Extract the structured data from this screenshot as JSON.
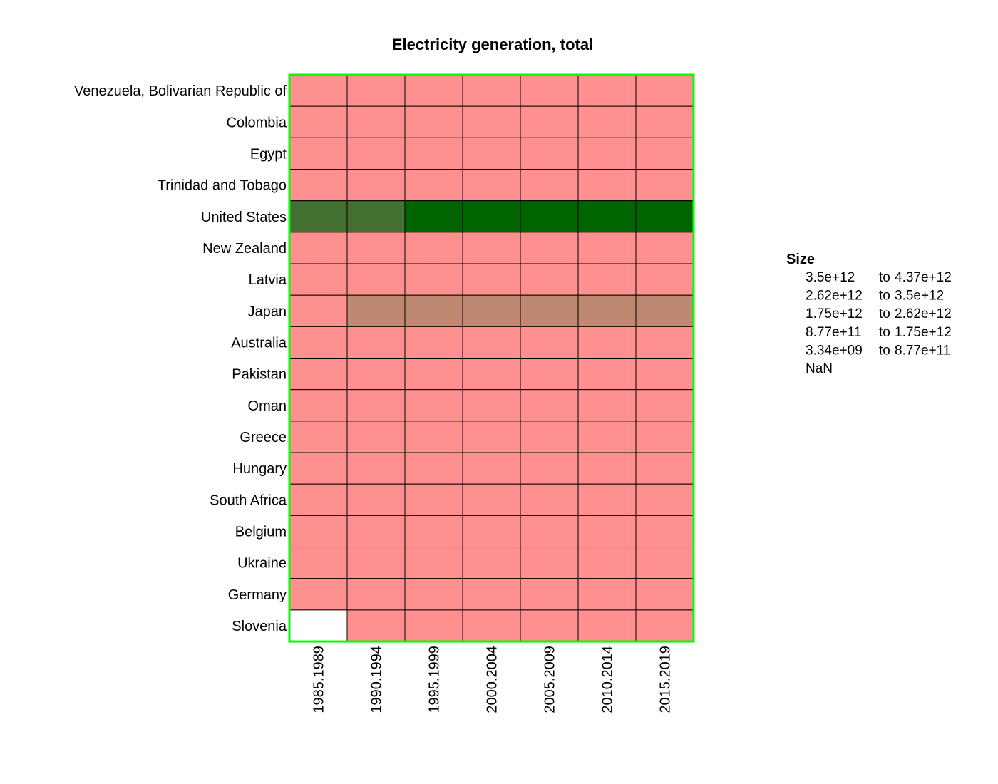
{
  "chart_data": {
    "type": "heatmap",
    "title": "Electricity generation, total",
    "columns": [
      "1985.1989",
      "1990.1994",
      "1995.1999",
      "2000.2004",
      "2005.2009",
      "2010.2014",
      "2015.2019"
    ],
    "rows": [
      "Venezuela, Bolivarian Republic of",
      "Colombia",
      "Egypt",
      "Trinidad and Tobago",
      "United States",
      "New Zealand",
      "Latvia",
      "Japan",
      "Australia",
      "Pakistan",
      "Oman",
      "Greece",
      "Hungary",
      "South Africa",
      "Belgium",
      "Ukraine",
      "Germany",
      "Slovenia"
    ],
    "bins": [
      {
        "from": "3.5e+12",
        "to": "4.37e+12",
        "color": "#006400"
      },
      {
        "from": "2.62e+12",
        "to": "3.5e+12",
        "color": "#437030"
      },
      {
        "from": "1.75e+12",
        "to": "2.62e+12",
        "color": "#807c60"
      },
      {
        "from": "8.77e+11",
        "to": "1.75e+12",
        "color": "#bf8870"
      },
      {
        "from": "3.34e+09",
        "to": "8.77e+11",
        "color": "#ff9090"
      }
    ],
    "nan_label": "NaN",
    "nan_color": "#ffffff",
    "bin_index": [
      [
        4,
        4,
        4,
        4,
        4,
        4,
        4
      ],
      [
        4,
        4,
        4,
        4,
        4,
        4,
        4
      ],
      [
        4,
        4,
        4,
        4,
        4,
        4,
        4
      ],
      [
        4,
        4,
        4,
        4,
        4,
        4,
        4
      ],
      [
        1,
        1,
        0,
        0,
        0,
        0,
        0
      ],
      [
        4,
        4,
        4,
        4,
        4,
        4,
        4
      ],
      [
        4,
        4,
        4,
        4,
        4,
        4,
        4
      ],
      [
        4,
        3,
        3,
        3,
        3,
        3,
        3
      ],
      [
        4,
        4,
        4,
        4,
        4,
        4,
        4
      ],
      [
        4,
        4,
        4,
        4,
        4,
        4,
        4
      ],
      [
        4,
        4,
        4,
        4,
        4,
        4,
        4
      ],
      [
        4,
        4,
        4,
        4,
        4,
        4,
        4
      ],
      [
        4,
        4,
        4,
        4,
        4,
        4,
        4
      ],
      [
        4,
        4,
        4,
        4,
        4,
        4,
        4
      ],
      [
        4,
        4,
        4,
        4,
        4,
        4,
        4
      ],
      [
        4,
        4,
        4,
        4,
        4,
        4,
        4
      ],
      [
        4,
        4,
        4,
        4,
        4,
        4,
        4
      ],
      [
        null,
        4,
        4,
        4,
        4,
        4,
        4
      ]
    ],
    "legend": {
      "title": "Size",
      "connector": "to",
      "position": "right"
    },
    "frame_color": "#00ff00",
    "grid": true
  }
}
